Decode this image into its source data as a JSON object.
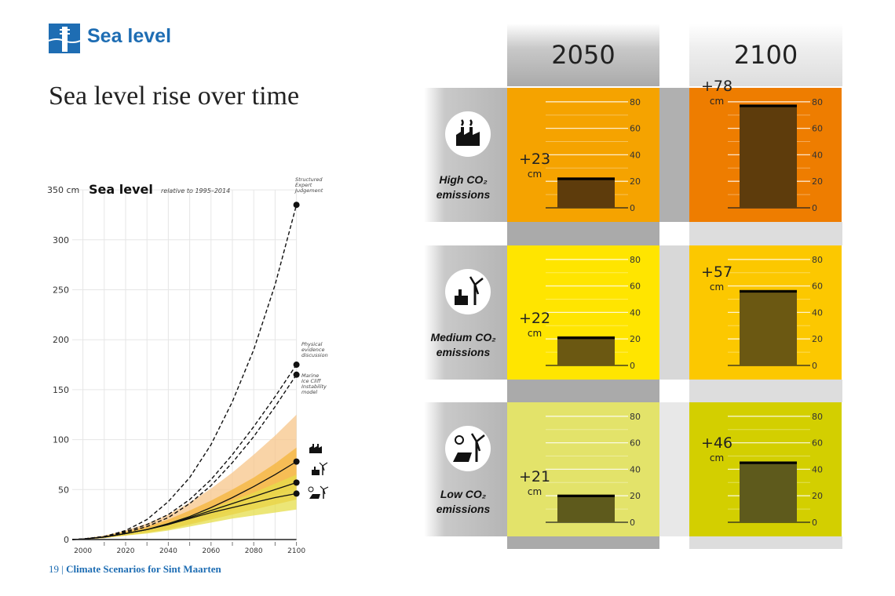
{
  "header": {
    "section": "Sea level",
    "title": "Sea level rise over time",
    "logo_icon": "tide-gauge-icon",
    "accent": "#1e6db3"
  },
  "footer": {
    "page": "19",
    "separator": "|",
    "text": "Climate Scenarios for Sint Maarten"
  },
  "chart_data": [
    {
      "type": "line",
      "title": "Sea level",
      "subtitle": "relative to 1995–2014",
      "ylabel": "cm",
      "ylim": [
        0,
        350
      ],
      "yticks": [
        "0",
        "50",
        "100",
        "150",
        "200",
        "250",
        "300",
        "350"
      ],
      "xlim": [
        1995,
        2100
      ],
      "xticks": [
        "2000",
        "2020",
        "2040",
        "2060",
        "2080",
        "2100"
      ],
      "grid": true,
      "x": [
        1995,
        2000,
        2010,
        2020,
        2030,
        2040,
        2050,
        2060,
        2070,
        2080,
        2090,
        2100
      ],
      "series": [
        {
          "name": "Structured Expert Judgement",
          "style": "dashed",
          "values": [
            0,
            0.5,
            3,
            9,
            20,
            38,
            62,
            95,
            138,
            190,
            255,
            335
          ]
        },
        {
          "name": "Physical evidence discussion",
          "style": "dashed",
          "values": [
            0,
            0.5,
            3,
            8,
            15,
            25,
            40,
            60,
            85,
            113,
            143,
            175
          ]
        },
        {
          "name": "Marine Ice Cliff Instability model",
          "style": "dashed",
          "values": [
            0,
            0.5,
            3,
            7,
            13,
            22,
            36,
            54,
            77,
            103,
            133,
            165
          ]
        },
        {
          "scenario": "high",
          "style": "solid",
          "values": [
            0,
            0.5,
            2.5,
            6,
            10,
            16,
            23,
            32,
            42,
            53,
            65,
            78
          ]
        },
        {
          "scenario": "medium",
          "style": "solid",
          "values": [
            0,
            0.5,
            2.5,
            6,
            10,
            15,
            22,
            29,
            36,
            43,
            50,
            57
          ]
        },
        {
          "scenario": "low",
          "style": "solid",
          "values": [
            0,
            0.5,
            2.5,
            6,
            10,
            15,
            21,
            27,
            32,
            37,
            42,
            46
          ]
        }
      ],
      "bands": [
        {
          "scenario": "high",
          "color": "#f7c58a",
          "low": [
            0,
            0,
            1.5,
            4,
            7,
            11,
            16,
            22,
            29,
            36,
            44,
            52
          ],
          "high": [
            0,
            1,
            4,
            9,
            16,
            25,
            37,
            51,
            67,
            85,
            104,
            125
          ]
        },
        {
          "scenario": "medium",
          "color": "#f4b53a",
          "low": [
            0,
            0,
            1.5,
            4,
            7,
            10,
            15,
            20,
            25,
            30,
            35,
            40
          ],
          "high": [
            0,
            1,
            3.5,
            8,
            13,
            20,
            29,
            39,
            50,
            62,
            76,
            92
          ]
        },
        {
          "scenario": "low",
          "color": "#e6de4a",
          "low": [
            0,
            0,
            1.5,
            4,
            6,
            9,
            13,
            17,
            21,
            24,
            27,
            30
          ],
          "high": [
            0,
            1,
            3,
            7,
            11,
            17,
            24,
            31,
            39,
            47,
            56,
            65
          ]
        }
      ],
      "colors": {
        "band_high": "#f7c58a",
        "band_mid": "#f4b53a",
        "band_low": "#e6de4a",
        "line": "#111111"
      }
    },
    {
      "type": "bar",
      "unit": "cm",
      "ylim": [
        0,
        80
      ],
      "yticks": [
        "0",
        "20",
        "40",
        "60",
        "80"
      ],
      "columns": [
        "2050",
        "2100"
      ],
      "rows": [
        {
          "label": "High CO₂ emissions",
          "icon": "factory-icon",
          "values": [
            23,
            78
          ],
          "display": [
            "+23",
            "+78"
          ],
          "colors": [
            "#f5a300",
            "#ee7d00"
          ],
          "bar_color": "#5e3c0c"
        },
        {
          "label": "Medium CO₂ emissions",
          "icon": "factory-wind-turbine-icon",
          "values": [
            22,
            57
          ],
          "display": [
            "+22",
            "+57"
          ],
          "colors": [
            "#ffe500",
            "#fcc800"
          ],
          "bar_color": "#6b5812"
        },
        {
          "label": "Low CO₂ emissions",
          "icon": "solar-wind-icon",
          "values": [
            21,
            46
          ],
          "display": [
            "+21",
            "+46"
          ],
          "colors": [
            "#e3e36a",
            "#d3cf00"
          ],
          "bar_color": "#5e5a1c"
        }
      ]
    }
  ]
}
